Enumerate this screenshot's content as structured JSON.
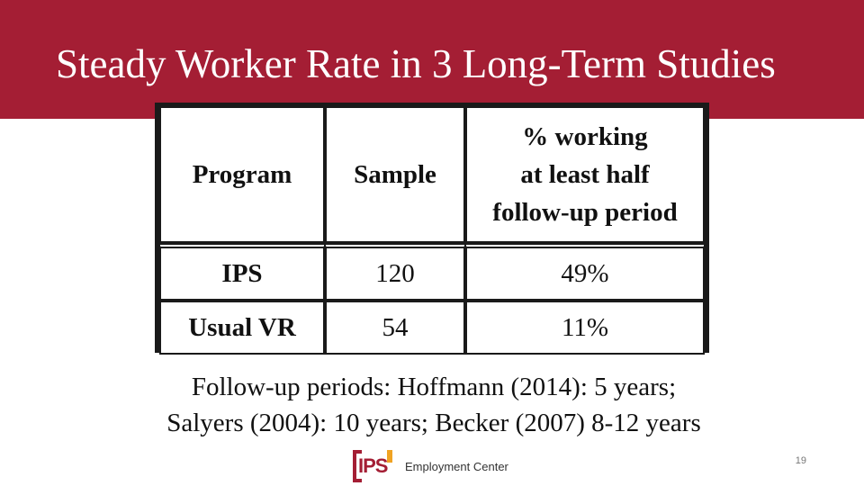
{
  "slide": {
    "title": "Steady Worker Rate in 3 Long-Term Studies",
    "page_number": "19"
  },
  "table": {
    "headers": {
      "program": "Program",
      "sample": "Sample",
      "pct_line1": "% working",
      "pct_line2": "at least half",
      "pct_line3": "follow-up period"
    },
    "rows": [
      {
        "program": "IPS",
        "sample": "120",
        "pct": "49%"
      },
      {
        "program": "Usual VR",
        "sample": "54",
        "pct": "11%"
      }
    ]
  },
  "footnote": {
    "line1": "Follow-up periods:  Hoffmann (2014): 5 years;",
    "line2": "Salyers (2004): 10 years; Becker (2007) 8-12 years"
  },
  "logo": {
    "mark_text": "IPS",
    "text": "Employment Center",
    "colors": {
      "primary": "#a41e34",
      "accent": "#f0a323"
    }
  },
  "theme": {
    "header_color": "#a41e34"
  }
}
